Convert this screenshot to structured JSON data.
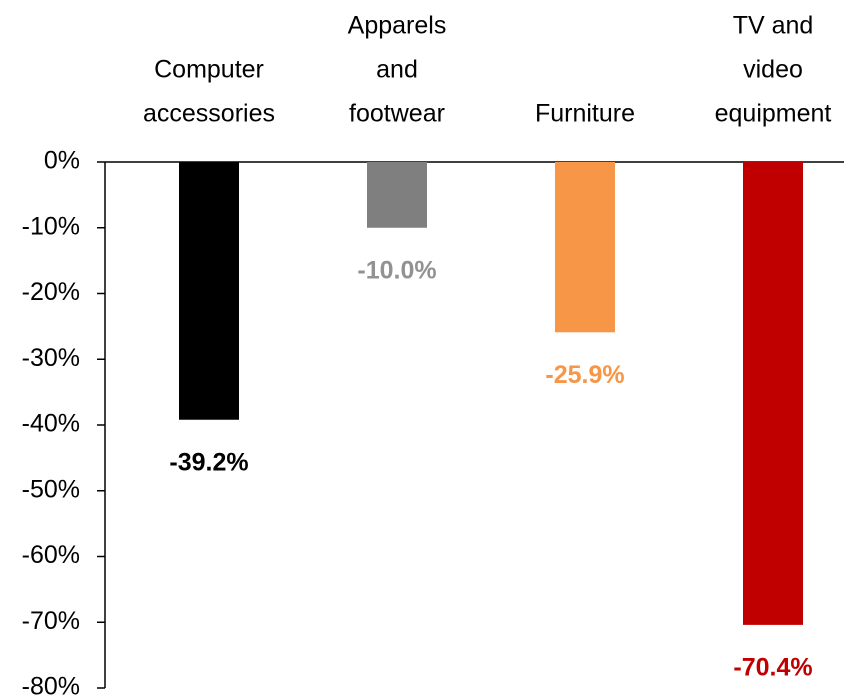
{
  "chart_data": {
    "type": "bar",
    "categories": [
      [
        "Computer",
        "accessories"
      ],
      [
        "Apparels",
        "and",
        "footwear"
      ],
      [
        "Furniture"
      ],
      [
        "TV and",
        "video",
        "equipment"
      ]
    ],
    "values": [
      -39.2,
      -10.0,
      -25.9,
      -70.4
    ],
    "value_labels": [
      "-39.2%",
      "-10.0%",
      "-25.9%",
      "-70.4%"
    ],
    "colors": [
      "#000000",
      "#7f7f7f",
      "#f79646",
      "#c00000"
    ],
    "ylim": [
      -80,
      0
    ],
    "yticks": [
      {
        "value": 0,
        "label": "0%"
      },
      {
        "value": -10,
        "label": "-10%"
      },
      {
        "value": -20,
        "label": "-20%"
      },
      {
        "value": -30,
        "label": "-30%"
      },
      {
        "value": -40,
        "label": "-40%"
      },
      {
        "value": -50,
        "label": "-50%"
      },
      {
        "value": -60,
        "label": "-60%"
      },
      {
        "value": -70,
        "label": "-70%"
      },
      {
        "value": -80,
        "label": "-80%"
      }
    ]
  }
}
